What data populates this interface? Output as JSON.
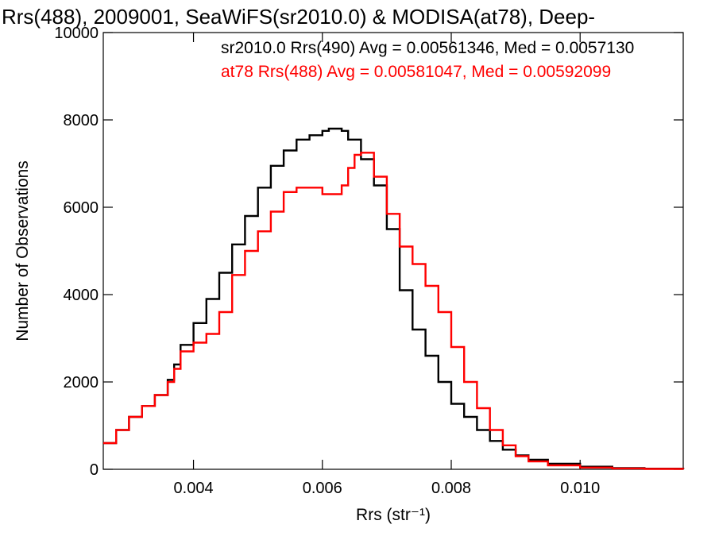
{
  "chart_data": {
    "type": "line",
    "title": "Rrs(488), 2009001, SeaWiFS(sr2010.0) & MODISA(at78), Deep-",
    "xlabel": "Rrs (str⁻¹)",
    "ylabel": "Number of Observations",
    "xlim": [
      0.0026,
      0.0116
    ],
    "ylim": [
      0,
      10000
    ],
    "x_ticks": [
      0.004,
      0.006,
      0.008,
      0.01
    ],
    "x_tick_labels": [
      "0.004",
      "0.006",
      "0.008",
      "0.010"
    ],
    "y_ticks": [
      0,
      2000,
      4000,
      6000,
      8000,
      10000
    ],
    "y_tick_labels": [
      "0",
      "2000",
      "4000",
      "6000",
      "8000",
      "10000"
    ],
    "legend_position": "top-right",
    "grid": false,
    "series": [
      {
        "name": "sr2010.0 Rrs(490) Avg = 0.00561346, Med = 0.0057130",
        "color": "#000000",
        "x": [
          0.0026,
          0.0028,
          0.003,
          0.0032,
          0.0034,
          0.0036,
          0.0037,
          0.0038,
          0.004,
          0.0042,
          0.0044,
          0.0046,
          0.0048,
          0.005,
          0.0052,
          0.0054,
          0.0056,
          0.0058,
          0.006,
          0.0061,
          0.0062,
          0.0063,
          0.0064,
          0.0066,
          0.0068,
          0.007,
          0.0072,
          0.0074,
          0.0076,
          0.0078,
          0.008,
          0.0082,
          0.0084,
          0.0086,
          0.0088,
          0.009,
          0.0092,
          0.0095,
          0.01,
          0.0105,
          0.011,
          0.0116
        ],
        "y": [
          600,
          900,
          1200,
          1450,
          1700,
          2050,
          2400,
          2850,
          3350,
          3900,
          4500,
          5150,
          5800,
          6450,
          6950,
          7300,
          7550,
          7650,
          7750,
          7800,
          7800,
          7750,
          7550,
          7100,
          6500,
          5500,
          4100,
          3200,
          2600,
          2000,
          1500,
          1200,
          900,
          650,
          450,
          320,
          220,
          130,
          60,
          30,
          15,
          5
        ]
      },
      {
        "name": "at78 Rrs(488) Avg = 0.00581047, Med = 0.00592099",
        "color": "#ff0000",
        "x": [
          0.0026,
          0.0028,
          0.003,
          0.0032,
          0.0034,
          0.0036,
          0.0037,
          0.0038,
          0.004,
          0.0042,
          0.0044,
          0.0046,
          0.0048,
          0.005,
          0.0052,
          0.0054,
          0.0056,
          0.0058,
          0.006,
          0.0062,
          0.0063,
          0.0064,
          0.0065,
          0.0066,
          0.0068,
          0.007,
          0.0072,
          0.0074,
          0.0076,
          0.0078,
          0.008,
          0.0082,
          0.0084,
          0.0086,
          0.0088,
          0.009,
          0.0092,
          0.0095,
          0.01,
          0.0105,
          0.011,
          0.0116
        ],
        "y": [
          600,
          900,
          1200,
          1450,
          1700,
          2000,
          2300,
          2700,
          2900,
          3100,
          3600,
          4450,
          5000,
          5450,
          5900,
          6350,
          6450,
          6450,
          6300,
          6300,
          6500,
          6900,
          7200,
          7250,
          6700,
          5850,
          5100,
          4700,
          4200,
          3600,
          2800,
          2000,
          1400,
          900,
          550,
          300,
          180,
          90,
          40,
          20,
          10,
          5
        ]
      }
    ]
  }
}
